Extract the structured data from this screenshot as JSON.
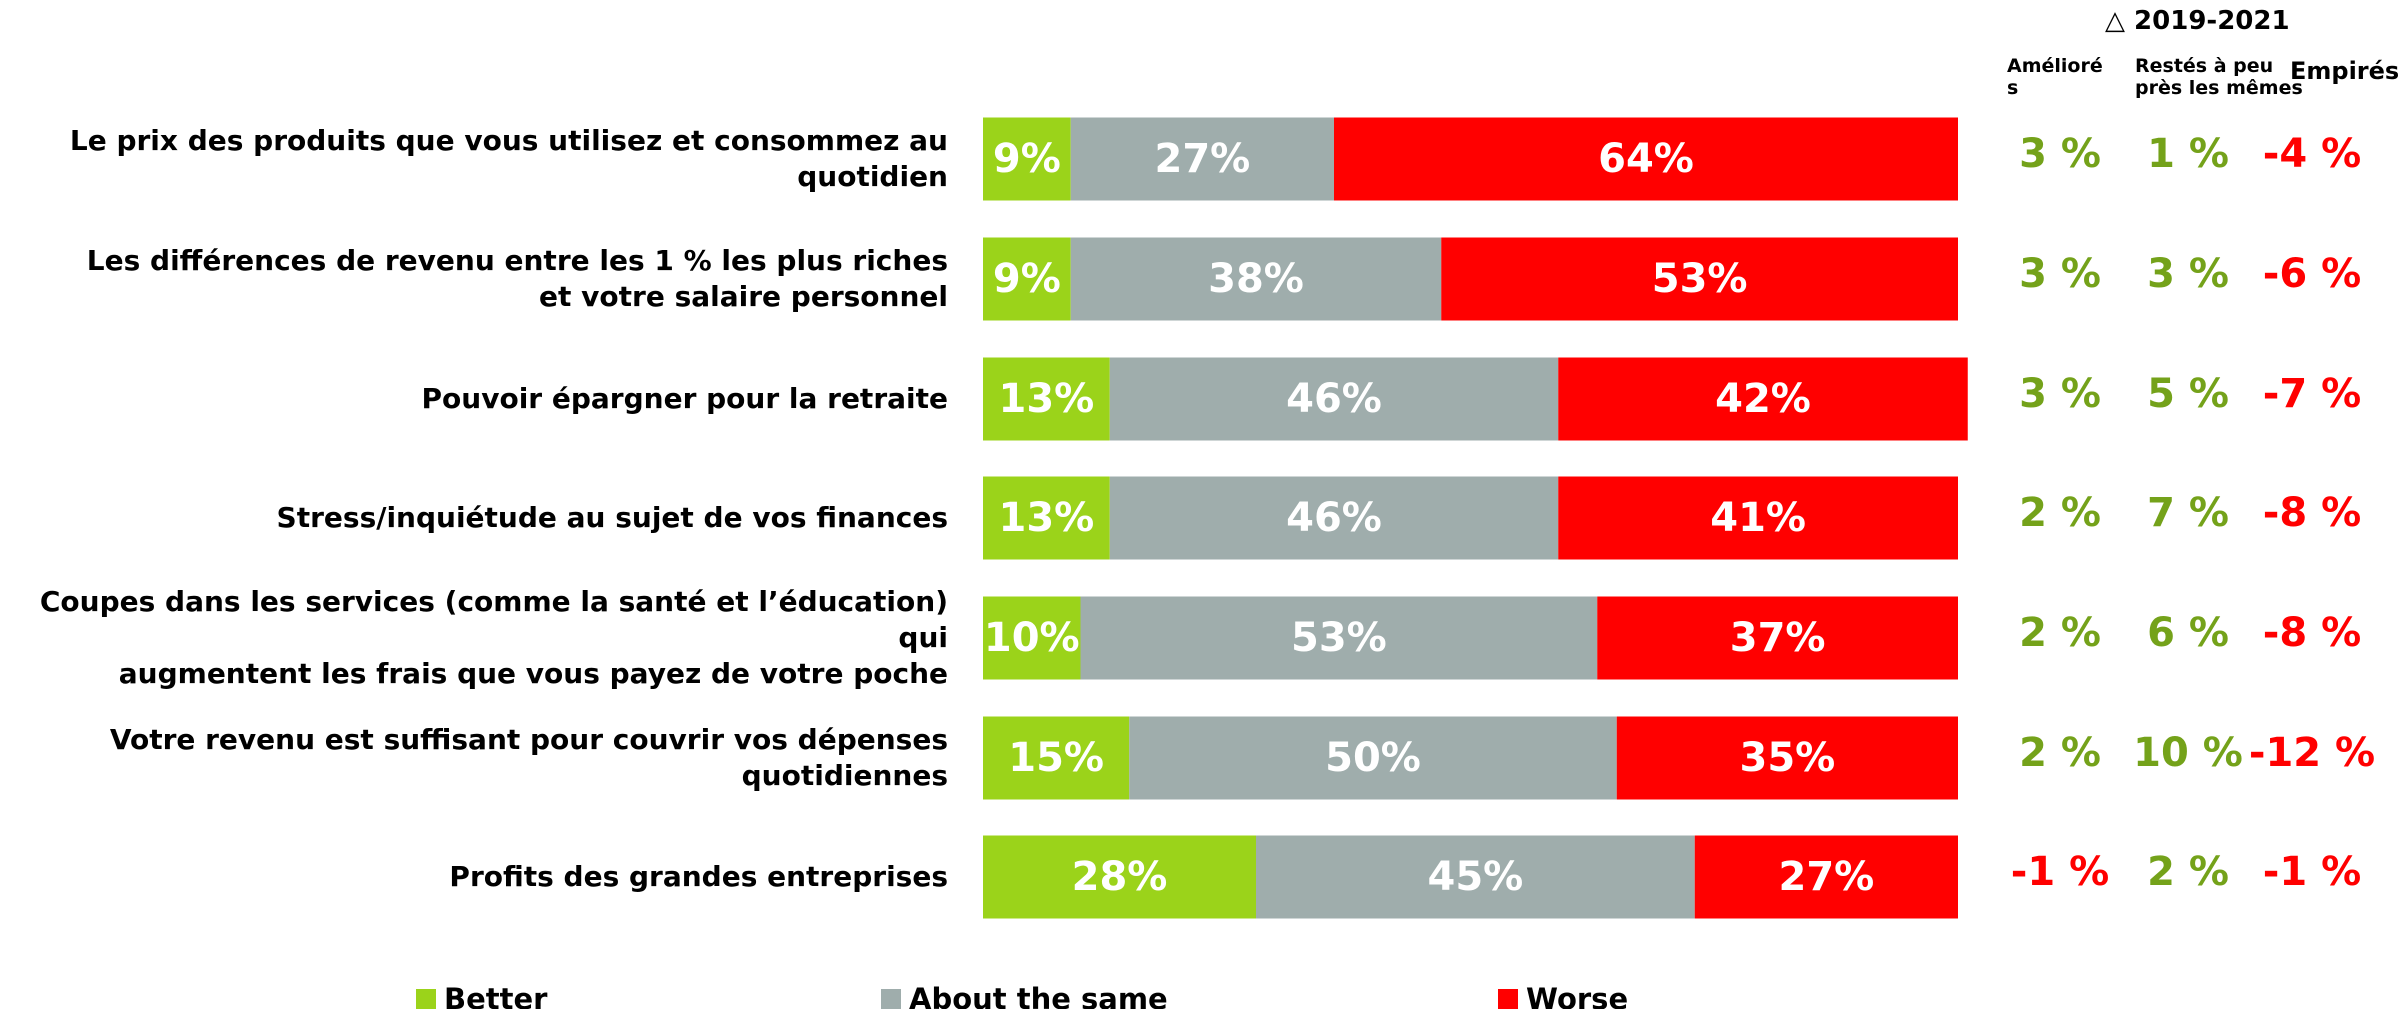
{
  "chart_data": {
    "type": "stacked_barh",
    "categories": [
      "Le prix des produits que vous utilisez et consommez au quotidien",
      "Les différences de revenu entre les 1 % les plus riches\net votre salaire personnel",
      "Pouvoir épargner pour la retraite",
      "Stress/inquiétude au sujet de vos finances",
      "Coupes dans les services (comme la santé et l’éducation) qui\naugmentent les frais que vous payez de votre poche",
      "Votre revenu est suffisant pour couvrir vos dépenses quotidiennes",
      "Profits des grandes entreprises"
    ],
    "series": [
      {
        "name": "Better",
        "color": "#9bd31a",
        "values": [
          9,
          9,
          13,
          13,
          10,
          15,
          28
        ],
        "value_labels": [
          "9%",
          "9%",
          "13%",
          "13%",
          "10%",
          "15%",
          "28%"
        ]
      },
      {
        "name": "About the same",
        "color": "#9fadac",
        "values": [
          27,
          38,
          46,
          46,
          53,
          50,
          45
        ],
        "value_labels": [
          "27%",
          "38%",
          "46%",
          "46%",
          "53%",
          "50%",
          "45%"
        ]
      },
      {
        "name": "Worse",
        "color": "#ff0000",
        "values": [
          64,
          53,
          42,
          41,
          37,
          35,
          27
        ],
        "value_labels": [
          "64%",
          "53%",
          "42%",
          "41%",
          "37%",
          "35%",
          "27%"
        ]
      }
    ],
    "xlim": [
      0,
      100
    ],
    "delta_table": {
      "title": "△ 2019-2021",
      "columns": [
        "Amélioré\ns",
        "Restés à peu\nprès les mêmes",
        "Empirés"
      ],
      "positive_color": "#74a21a",
      "negative_color": "#ff0000",
      "rows": [
        [
          {
            "value": 3,
            "label": "3 %"
          },
          {
            "value": 1,
            "label": "1 %"
          },
          {
            "value": -4,
            "label": "-4 %"
          }
        ],
        [
          {
            "value": 3,
            "label": "3 %"
          },
          {
            "value": 3,
            "label": "3 %"
          },
          {
            "value": -6,
            "label": "-6 %"
          }
        ],
        [
          {
            "value": 3,
            "label": "3 %"
          },
          {
            "value": 5,
            "label": "5 %"
          },
          {
            "value": -7,
            "label": "-7 %"
          }
        ],
        [
          {
            "value": 2,
            "label": "2 %"
          },
          {
            "value": 7,
            "label": "7 %"
          },
          {
            "value": -8,
            "label": "-8 %"
          }
        ],
        [
          {
            "value": 2,
            "label": "2 %"
          },
          {
            "value": 6,
            "label": "6 %"
          },
          {
            "value": -8,
            "label": "-8 %"
          }
        ],
        [
          {
            "value": 2,
            "label": "2 %"
          },
          {
            "value": 10,
            "label": "10 %"
          },
          {
            "value": -12,
            "label": "-12 %"
          }
        ],
        [
          {
            "value": -1,
            "label": "-1 %"
          },
          {
            "value": 2,
            "label": "2 %"
          },
          {
            "value": -1,
            "label": "-1 %"
          }
        ]
      ]
    }
  }
}
